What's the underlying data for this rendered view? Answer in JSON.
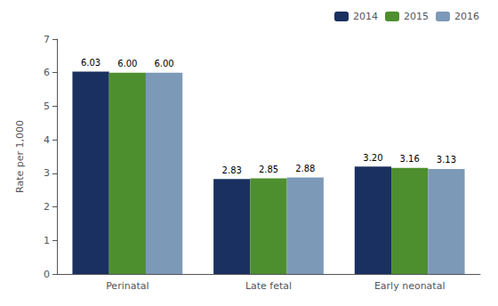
{
  "chart_data": {
    "type": "bar",
    "categories": [
      "Perinatal",
      "Late fetal",
      "Early neonatal"
    ],
    "series": [
      {
        "name": "2014",
        "color": "#1a3060",
        "values": [
          6.03,
          2.83,
          3.2
        ],
        "value_labels": [
          "6.03",
          "2.83",
          "3.20"
        ]
      },
      {
        "name": "2015",
        "color": "#4d8f2e",
        "values": [
          6.0,
          2.85,
          3.16
        ],
        "value_labels": [
          "6.00",
          "2.85",
          "3.16"
        ]
      },
      {
        "name": "2016",
        "color": "#7d99b8",
        "values": [
          6.0,
          2.88,
          3.13
        ],
        "value_labels": [
          "6.00",
          "2.88",
          "3.13"
        ]
      }
    ],
    "ylabel": "Rate per 1,000",
    "ylim": [
      0,
      7
    ],
    "yticks": [
      0,
      1,
      2,
      3,
      4,
      5,
      6,
      7
    ],
    "grid": false,
    "legend": "upper right",
    "data_labels": true
  }
}
